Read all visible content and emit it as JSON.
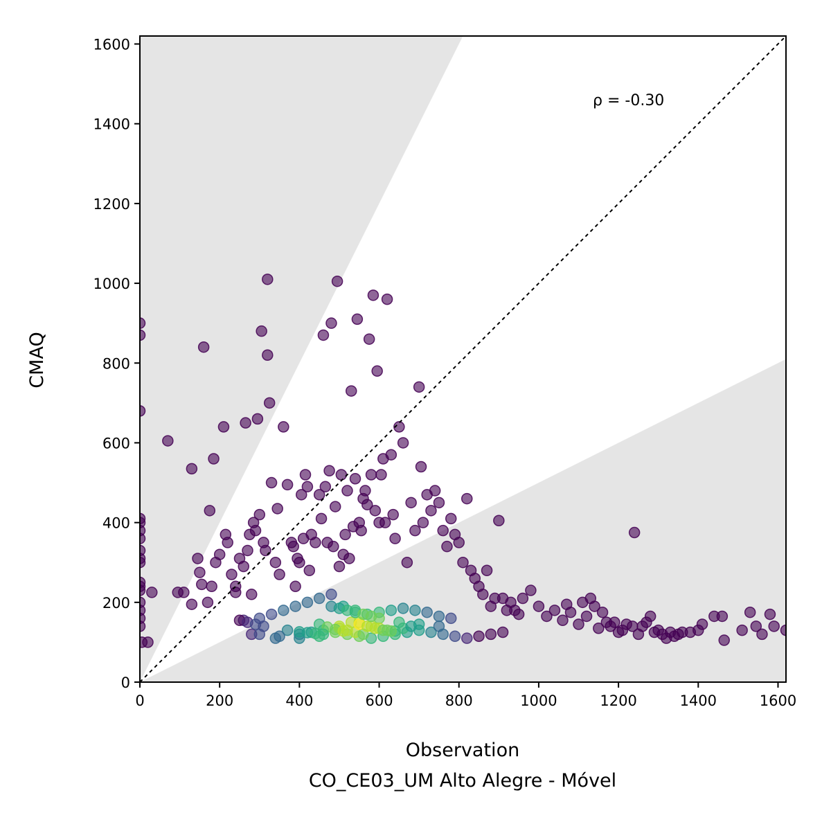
{
  "chart_data": {
    "type": "scatter",
    "title": "",
    "xlabel": "Observation",
    "xlabel_sub": "CO_CE03_UM Alto Alegre - Móvel",
    "ylabel": "CMAQ",
    "xlim": [
      0,
      1620
    ],
    "ylim": [
      0,
      1620
    ],
    "xticks": [
      "0",
      "200",
      "400",
      "600",
      "800",
      "1000",
      "1200",
      "1400",
      "1600"
    ],
    "yticks": [
      "0",
      "200",
      "400",
      "600",
      "800",
      "1000",
      "1200",
      "1400",
      "1600"
    ],
    "annotation": "ρ = -0.30",
    "grid": false,
    "identity_line": true,
    "factor_band": {
      "lower_slope": 0.5,
      "upper_slope": 2.0,
      "fill": "#e5e5e5"
    },
    "colormap": [
      "#440154",
      "#482878",
      "#3e4a89",
      "#31688e",
      "#26828e",
      "#1f9e89",
      "#35b779",
      "#6ece58",
      "#b5de2b",
      "#fde725"
    ],
    "density_center": {
      "x": 550,
      "y": 140
    },
    "points_x": [
      0,
      0,
      0,
      0,
      0,
      0,
      0,
      0,
      0,
      0,
      0,
      0,
      0,
      0,
      0,
      0,
      0,
      5,
      20,
      30,
      70,
      95,
      110,
      130,
      130,
      145,
      150,
      155,
      160,
      170,
      175,
      180,
      185,
      190,
      200,
      210,
      215,
      220,
      230,
      240,
      250,
      260,
      265,
      270,
      275,
      280,
      285,
      290,
      295,
      300,
      305,
      310,
      315,
      320,
      320,
      325,
      330,
      340,
      345,
      350,
      360,
      370,
      380,
      385,
      390,
      395,
      400,
      405,
      410,
      415,
      420,
      425,
      430,
      440,
      450,
      455,
      460,
      465,
      470,
      475,
      480,
      485,
      490,
      495,
      500,
      505,
      510,
      515,
      520,
      525,
      530,
      535,
      540,
      545,
      550,
      555,
      560,
      565,
      570,
      575,
      580,
      585,
      590,
      595,
      600,
      605,
      610,
      615,
      620,
      630,
      635,
      640,
      650,
      660,
      670,
      680,
      690,
      700,
      705,
      710,
      720,
      730,
      740,
      750,
      760,
      770,
      780,
      790,
      800,
      810,
      820,
      830,
      840,
      850,
      860,
      870,
      880,
      890,
      900,
      910,
      920,
      930,
      940,
      950,
      960,
      980,
      1000,
      1020,
      1040,
      1060,
      1070,
      1080,
      1100,
      1110,
      1120,
      1130,
      1140,
      1150,
      1160,
      1170,
      1180,
      1190,
      1200,
      1210,
      1220,
      1235,
      1240,
      1250,
      1260,
      1270,
      1280,
      1290,
      1300,
      1310,
      1320,
      1330,
      1340,
      1350,
      1360,
      1380,
      1400,
      1410,
      1440,
      1460,
      1465,
      1510,
      1530,
      1545,
      1560,
      1580,
      1590,
      1620,
      240,
      260,
      280,
      300,
      330,
      360,
      390,
      420,
      450,
      480,
      510,
      540,
      570,
      600,
      630,
      660,
      690,
      720,
      750,
      780,
      250,
      270,
      290,
      310,
      340,
      370,
      400,
      430,
      460,
      490,
      520,
      550,
      580,
      610,
      640,
      670,
      700,
      730,
      760,
      790,
      820,
      850,
      880,
      910,
      300,
      350,
      400,
      450,
      500,
      550,
      600,
      650,
      700,
      750,
      500,
      520,
      540,
      560,
      580,
      600,
      620,
      640,
      660,
      680,
      450,
      470,
      490,
      510,
      530,
      550,
      570,
      590,
      610,
      630,
      400,
      420,
      440,
      460,
      480,
      500,
      520,
      540,
      560,
      580
    ],
    "points_y": [
      900,
      870,
      680,
      410,
      400,
      380,
      360,
      330,
      310,
      300,
      250,
      240,
      230,
      200,
      180,
      160,
      140,
      100,
      100,
      225,
      605,
      225,
      225,
      195,
      535,
      310,
      275,
      245,
      840,
      200,
      430,
      240,
      560,
      300,
      320,
      640,
      370,
      350,
      270,
      240,
      310,
      290,
      650,
      330,
      370,
      220,
      400,
      380,
      660,
      420,
      880,
      350,
      330,
      1010,
      820,
      700,
      500,
      300,
      435,
      270,
      640,
      495,
      350,
      340,
      240,
      310,
      300,
      470,
      360,
      520,
      490,
      280,
      370,
      350,
      470,
      410,
      870,
      490,
      350,
      530,
      900,
      340,
      440,
      1005,
      290,
      520,
      320,
      370,
      480,
      310,
      730,
      390,
      510,
      910,
      400,
      380,
      460,
      480,
      445,
      860,
      520,
      970,
      430,
      780,
      400,
      520,
      560,
      400,
      960,
      570,
      420,
      360,
      640,
      600,
      300,
      450,
      380,
      740,
      540,
      400,
      470,
      430,
      480,
      450,
      380,
      340,
      410,
      370,
      350,
      300,
      460,
      280,
      260,
      240,
      220,
      280,
      190,
      210,
      405,
      210,
      180,
      200,
      180,
      170,
      210,
      230,
      190,
      165,
      180,
      155,
      195,
      175,
      145,
      200,
      165,
      210,
      190,
      135,
      175,
      150,
      140,
      150,
      125,
      130,
      145,
      140,
      375,
      120,
      140,
      150,
      165,
      125,
      130,
      120,
      110,
      125,
      115,
      120,
      125,
      125,
      130,
      145,
      165,
      165,
      105,
      130,
      175,
      140,
      120,
      170,
      140,
      130,
      225,
      155,
      120,
      160,
      170,
      180,
      190,
      200,
      210,
      220,
      190,
      180,
      170,
      175,
      180,
      185,
      180,
      175,
      165,
      160,
      155,
      150,
      145,
      140,
      110,
      130,
      120,
      125,
      130,
      125,
      120,
      115,
      110,
      115,
      120,
      125,
      130,
      125,
      120,
      115,
      110,
      115,
      120,
      125,
      120,
      115,
      110,
      115,
      140,
      150,
      160,
      150,
      145,
      140,
      135,
      130,
      125,
      120,
      140,
      135,
      130,
      128,
      135,
      140,
      145,
      138,
      132,
      128,
      150,
      145,
      140,
      135,
      130,
      128,
      126,
      124,
      122,
      120,
      190,
      185,
      180,
      175,
      170,
      165,
      160,
      155,
      150,
      145
    ]
  }
}
